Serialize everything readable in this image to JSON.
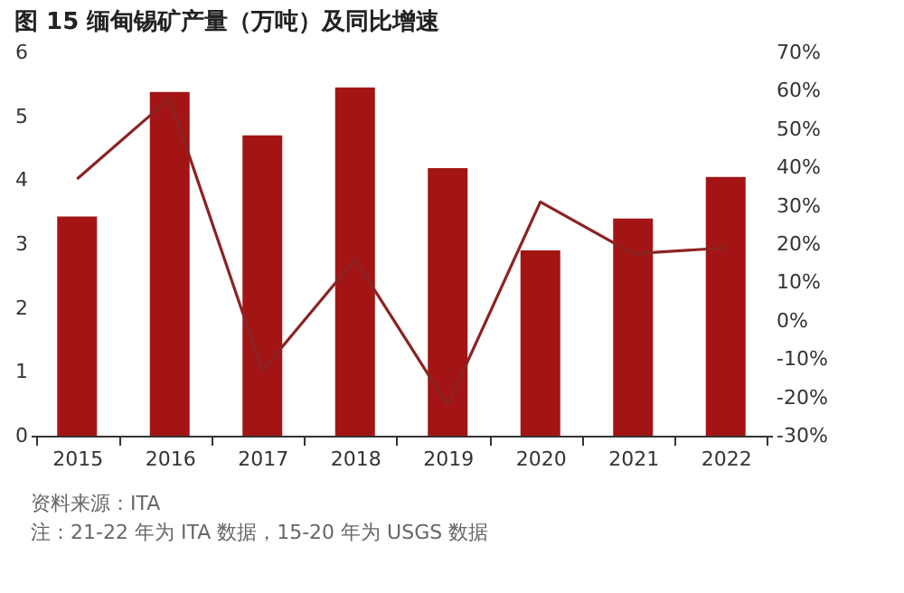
{
  "chart_data": {
    "type": "bar",
    "title": "图 15 缅甸锡矿产量（万吨）及同比增速",
    "categories": [
      "2015",
      "2016",
      "2017",
      "2018",
      "2019",
      "2020",
      "2021",
      "2022"
    ],
    "series": [
      {
        "color": "#a31515",
        "values": [
          3.43,
          5.38,
          4.7,
          5.45,
          4.19,
          2.9,
          3.4,
          4.05
        ]
      },
      {
        "type": "line",
        "axis": "y2",
        "color": "#8b2323",
        "values": [
          37,
          58,
          -13,
          16,
          -22,
          31,
          17.5,
          19
        ]
      }
    ],
    "ylim": [
      0,
      6
    ],
    "yticks": [
      0,
      1,
      2,
      3,
      4,
      5,
      6
    ],
    "y2lim": [
      -30,
      70
    ],
    "y2ticks": [
      {
        "value": -30,
        "label": "-30%"
      },
      {
        "value": -20,
        "label": "-20%"
      },
      {
        "value": -10,
        "label": "-10%"
      },
      {
        "value": 0,
        "label": "0%"
      },
      {
        "value": 10,
        "label": "10%"
      },
      {
        "value": 20,
        "label": "20%"
      },
      {
        "value": 30,
        "label": "30%"
      },
      {
        "value": 40,
        "label": "40%"
      },
      {
        "value": 50,
        "label": "50%"
      },
      {
        "value": 60,
        "label": "60%"
      },
      {
        "value": 70,
        "label": "70%"
      }
    ],
    "grid": false,
    "marker": "none",
    "line_style": "solid",
    "annotations": [
      "资料来源：ITA",
      "注：21-22 年为 ITA 数据，15-20 年为 USGS 数据"
    ]
  }
}
